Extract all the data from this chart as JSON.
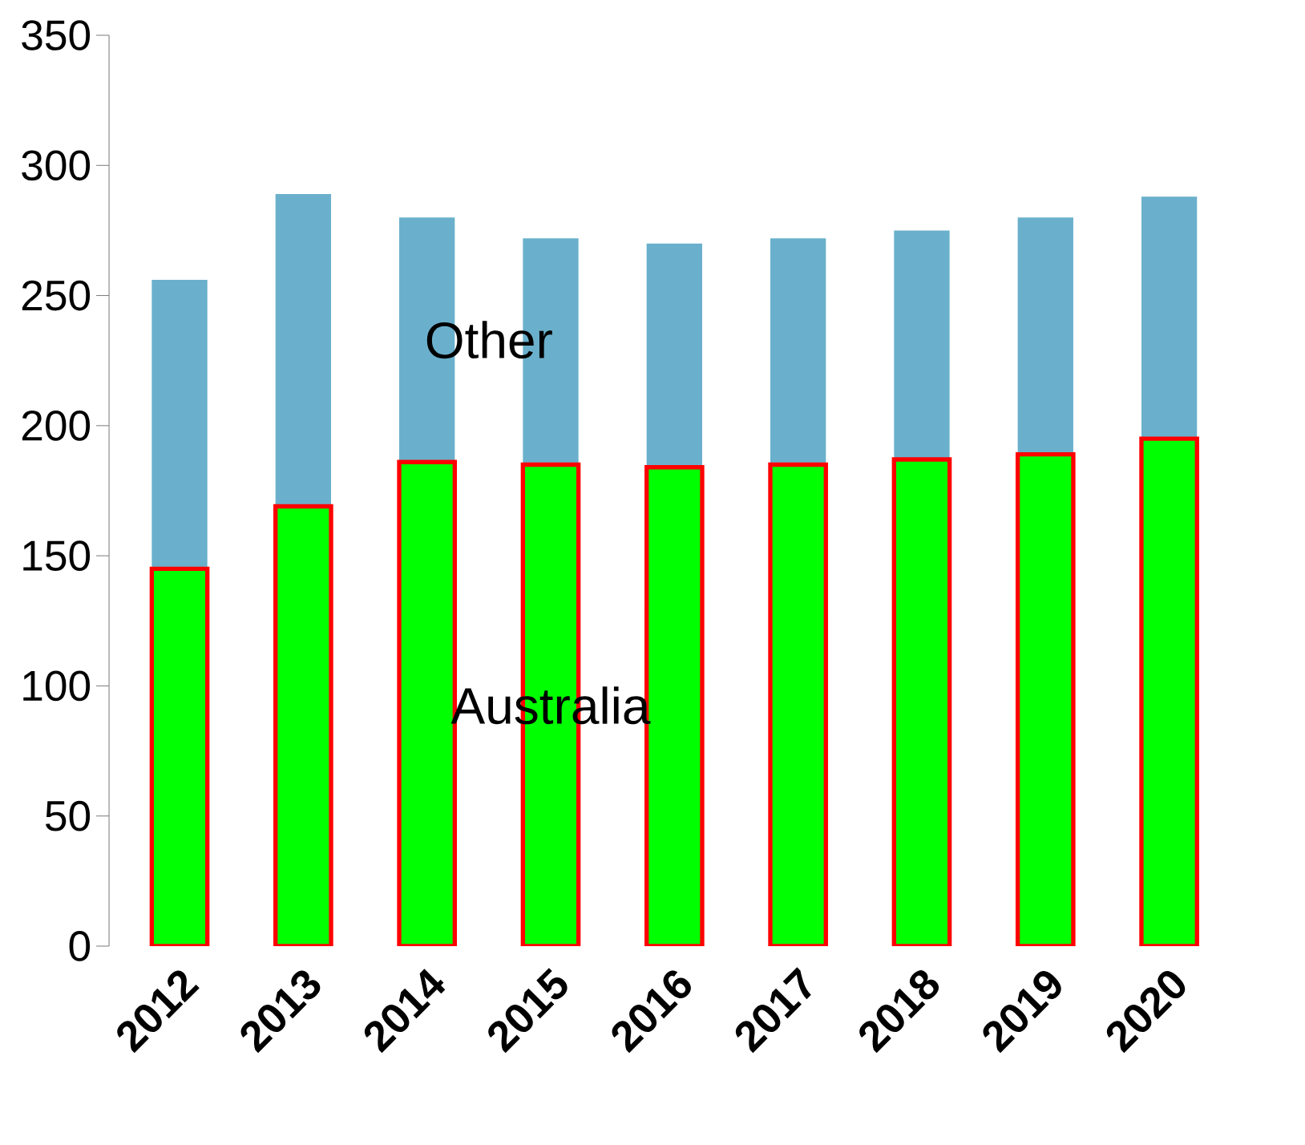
{
  "chart_data": {
    "type": "bar",
    "stacked": true,
    "categories": [
      "2012",
      "2013",
      "2014",
      "2015",
      "2016",
      "2017",
      "2018",
      "2019",
      "2020"
    ],
    "series": [
      {
        "name": "Australia",
        "color": "#00ff00",
        "values": [
          145,
          169,
          186,
          185,
          184,
          185,
          187,
          189,
          195
        ]
      },
      {
        "name": "Other",
        "color": "#6ab0cc",
        "values": [
          111,
          120,
          94,
          87,
          86,
          87,
          88,
          91,
          93
        ]
      }
    ],
    "ylim": [
      0,
      350
    ],
    "yticks": [
      0,
      50,
      100,
      150,
      200,
      250,
      300,
      350
    ],
    "grid": false
  }
}
